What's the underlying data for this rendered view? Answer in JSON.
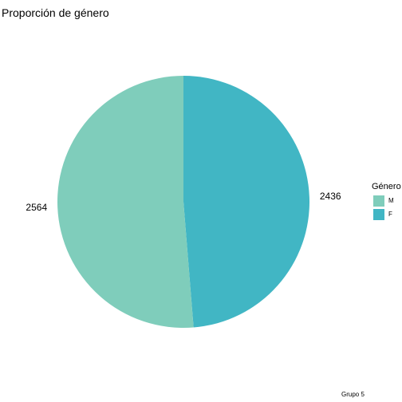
{
  "chart_data": {
    "type": "pie",
    "title": "Proporción de género",
    "categories": [
      "F",
      "M"
    ],
    "values": [
      2436,
      2564
    ],
    "colors": [
      "#41B6C4",
      "#7FCDBB"
    ],
    "labels": [
      "2436",
      "2564"
    ],
    "legend": {
      "title": "Género",
      "placement": "right",
      "entries": [
        {
          "label": "M",
          "color": "#7FCDBB"
        },
        {
          "label": "F",
          "color": "#41B6C4"
        }
      ]
    },
    "caption": "Grupo 5",
    "grid": false
  }
}
